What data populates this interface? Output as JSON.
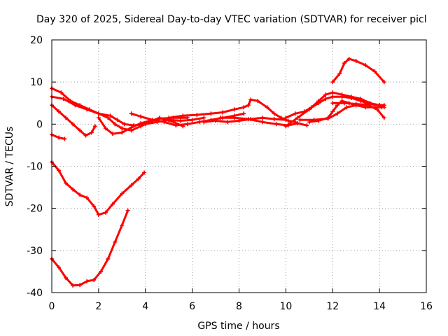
{
  "chart_data": {
    "type": "scatter",
    "title": "Day 320 of 2025, Sidereal Day-to-day VTEC variation (SDTVAR) for receiver picl",
    "xlabel": "GPS time / hours",
    "ylabel": "SDTVAR / TECUs",
    "xlim": [
      0,
      16
    ],
    "ylim": [
      -40,
      20
    ],
    "xticks": [
      0,
      2,
      4,
      6,
      8,
      10,
      12,
      14,
      16
    ],
    "yticks": [
      -40,
      -30,
      -20,
      -10,
      0,
      10,
      20
    ],
    "grid": true,
    "marker_color": "#ff0000",
    "series": [
      {
        "name": "s1",
        "points": [
          [
            0,
            -32
          ],
          [
            0.3,
            -34
          ],
          [
            0.6,
            -36.5
          ],
          [
            0.9,
            -38.3
          ],
          [
            1.2,
            -38.2
          ],
          [
            1.5,
            -37.3
          ],
          [
            1.8,
            -37
          ],
          [
            2.1,
            -35
          ],
          [
            2.4,
            -32
          ],
          [
            2.7,
            -28
          ],
          [
            3.0,
            -24
          ],
          [
            3.25,
            -20.5
          ]
        ]
      },
      {
        "name": "s2",
        "points": [
          [
            0,
            -9
          ],
          [
            0.3,
            -11
          ],
          [
            0.6,
            -14
          ],
          [
            0.9,
            -15.5
          ],
          [
            1.2,
            -16.8
          ],
          [
            1.5,
            -17.5
          ],
          [
            1.8,
            -19.5
          ],
          [
            2.0,
            -21.5
          ],
          [
            2.3,
            -21
          ],
          [
            2.6,
            -19
          ],
          [
            3.0,
            -16.5
          ],
          [
            3.4,
            -14.5
          ],
          [
            3.7,
            -13
          ],
          [
            3.95,
            -11.5
          ]
        ]
      },
      {
        "name": "s3",
        "points": [
          [
            0,
            -2.5
          ],
          [
            0.3,
            -3.2
          ],
          [
            0.55,
            -3.5
          ]
        ]
      },
      {
        "name": "s4",
        "points": [
          [
            0,
            4.5
          ],
          [
            0.3,
            3
          ],
          [
            0.6,
            1.5
          ],
          [
            0.9,
            0
          ],
          [
            1.2,
            -1.5
          ],
          [
            1.45,
            -2.7
          ],
          [
            1.7,
            -2
          ],
          [
            1.85,
            -0.5
          ]
        ]
      },
      {
        "name": "s5",
        "points": [
          [
            0,
            6.5
          ],
          [
            0.5,
            6
          ],
          [
            1.0,
            4.5
          ],
          [
            1.5,
            3.5
          ],
          [
            2.0,
            2.5
          ],
          [
            2.4,
            1.5
          ],
          [
            2.7,
            0
          ],
          [
            3.0,
            -1
          ],
          [
            3.4,
            -1.5
          ],
          [
            3.8,
            -0.5
          ],
          [
            4.2,
            0.5
          ],
          [
            4.6,
            1.5
          ],
          [
            5.2,
            0.5
          ],
          [
            5.6,
            -0.5
          ]
        ]
      },
      {
        "name": "s6",
        "points": [
          [
            0,
            8.5
          ],
          [
            0.4,
            7.5
          ],
          [
            0.8,
            5.5
          ],
          [
            1.2,
            4.5
          ],
          [
            1.6,
            3.5
          ],
          [
            2.0,
            2.5
          ],
          [
            2.5,
            2
          ],
          [
            2.8,
            1
          ],
          [
            3.1,
            0
          ],
          [
            3.5,
            -0.3
          ],
          [
            4.0,
            0
          ],
          [
            4.5,
            0.5
          ],
          [
            5.0,
            1
          ],
          [
            5.5,
            0.8
          ],
          [
            6.0,
            1
          ],
          [
            6.5,
            1.5
          ]
        ]
      },
      {
        "name": "s7",
        "points": [
          [
            2.0,
            1.5
          ],
          [
            2.3,
            -1
          ],
          [
            2.6,
            -2.3
          ],
          [
            3.0,
            -2
          ],
          [
            3.4,
            -0.8
          ],
          [
            3.8,
            0.2
          ],
          [
            4.2,
            0.8
          ],
          [
            4.6,
            1.3
          ],
          [
            5.2,
            1.5
          ],
          [
            5.8,
            1.5
          ]
        ]
      },
      {
        "name": "s8",
        "points": [
          [
            3.4,
            2.5
          ],
          [
            3.8,
            1.8
          ],
          [
            4.3,
            1
          ],
          [
            4.8,
            0.5
          ],
          [
            5.3,
            -0.3
          ],
          [
            5.8,
            0
          ],
          [
            6.3,
            0.5
          ],
          [
            6.8,
            1
          ],
          [
            7.3,
            1.5
          ],
          [
            7.8,
            2
          ],
          [
            8.2,
            2.5
          ]
        ]
      },
      {
        "name": "s9",
        "points": [
          [
            5.0,
            1.5
          ],
          [
            5.6,
            2
          ],
          [
            6.2,
            2.2
          ],
          [
            6.8,
            2.5
          ],
          [
            7.3,
            2.8
          ],
          [
            7.8,
            3.5
          ],
          [
            8.2,
            4
          ],
          [
            8.4,
            4.5
          ],
          [
            8.5,
            5.8
          ],
          [
            8.8,
            5.5
          ],
          [
            9.2,
            4
          ],
          [
            9.5,
            2.5
          ],
          [
            9.8,
            1.5
          ],
          [
            10.1,
            0.8
          ],
          [
            10.4,
            0.5
          ]
        ]
      },
      {
        "name": "s10",
        "points": [
          [
            6.5,
            0.5
          ],
          [
            7.0,
            0.8
          ],
          [
            7.5,
            0.5
          ],
          [
            8.0,
            0.8
          ],
          [
            8.5,
            1.2
          ],
          [
            9.0,
            1.5
          ],
          [
            9.5,
            1.2
          ],
          [
            10.0,
            1
          ]
        ]
      },
      {
        "name": "s11",
        "points": [
          [
            7.2,
            1.5
          ],
          [
            7.8,
            1.5
          ],
          [
            8.4,
            1.2
          ],
          [
            9.0,
            0.5
          ],
          [
            9.6,
            0
          ],
          [
            10.1,
            -0.3
          ],
          [
            10.5,
            0.2
          ],
          [
            10.9,
            -0.3
          ]
        ]
      },
      {
        "name": "s12",
        "points": [
          [
            10.0,
            1.5
          ],
          [
            10.4,
            2.5
          ],
          [
            10.8,
            3
          ],
          [
            11.1,
            4
          ],
          [
            11.4,
            5
          ],
          [
            11.7,
            6
          ],
          [
            12.0,
            6.5
          ],
          [
            12.4,
            6.5
          ],
          [
            12.8,
            6.2
          ],
          [
            13.2,
            5.5
          ],
          [
            13.6,
            4.8
          ],
          [
            14.0,
            4.5
          ]
        ]
      },
      {
        "name": "s13",
        "points": [
          [
            10.0,
            -0.5
          ],
          [
            10.5,
            1.5
          ],
          [
            11.0,
            3.5
          ],
          [
            11.4,
            5.5
          ],
          [
            11.7,
            7
          ],
          [
            12.0,
            7.5
          ],
          [
            12.4,
            7
          ],
          [
            12.8,
            6.5
          ],
          [
            13.2,
            6
          ],
          [
            13.6,
            5
          ],
          [
            14.0,
            4.5
          ],
          [
            14.2,
            4.5
          ]
        ]
      },
      {
        "name": "s14",
        "points": [
          [
            11.0,
            0.5
          ],
          [
            11.4,
            0.8
          ],
          [
            11.8,
            1.5
          ],
          [
            12.0,
            3
          ],
          [
            12.2,
            4.5
          ],
          [
            12.4,
            5.5
          ],
          [
            12.7,
            5
          ],
          [
            13.0,
            4.5
          ],
          [
            13.4,
            4
          ],
          [
            13.8,
            4
          ],
          [
            14.1,
            4
          ]
        ]
      },
      {
        "name": "s15",
        "points": [
          [
            10.6,
            1
          ],
          [
            11.2,
            1
          ],
          [
            11.8,
            1.3
          ],
          [
            12.2,
            2.5
          ],
          [
            12.6,
            4
          ],
          [
            13.0,
            4.5
          ],
          [
            13.5,
            4.8
          ],
          [
            14.0,
            4.5
          ],
          [
            14.2,
            4
          ]
        ]
      },
      {
        "name": "s16",
        "points": [
          [
            12.0,
            10
          ],
          [
            12.3,
            12
          ],
          [
            12.5,
            14.5
          ],
          [
            12.7,
            15.5
          ],
          [
            13.0,
            15
          ],
          [
            13.4,
            14
          ],
          [
            13.8,
            12.5
          ],
          [
            14.2,
            10
          ]
        ]
      },
      {
        "name": "s17",
        "points": [
          [
            12.0,
            5
          ],
          [
            12.5,
            5
          ],
          [
            13.0,
            4.8
          ],
          [
            13.5,
            4.5
          ],
          [
            13.9,
            3.5
          ],
          [
            14.2,
            1.5
          ]
        ]
      }
    ]
  }
}
